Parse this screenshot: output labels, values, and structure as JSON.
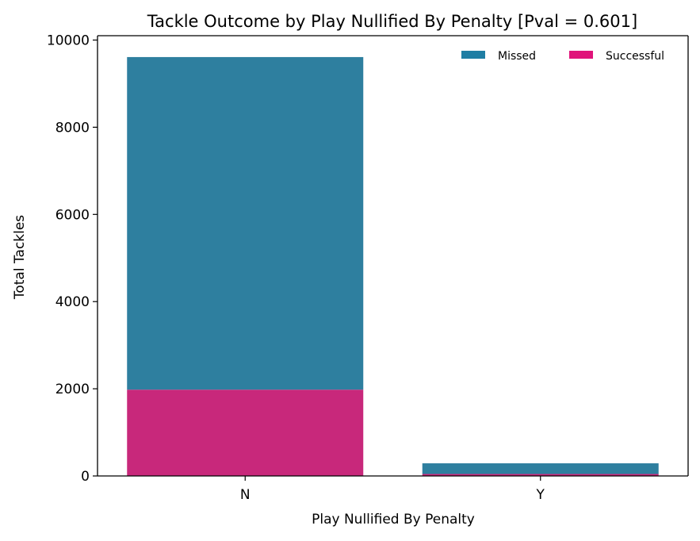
{
  "colors": {
    "missed": "#2e7f9f",
    "successful": "#c8287b",
    "legend_missed": "#1f7ea4",
    "legend_successful": "#e0137a",
    "axis": "#000000"
  },
  "chart_data": {
    "type": "bar",
    "stacked": true,
    "title": "Tackle Outcome by Play Nullified By Penalty [Pval = 0.601]",
    "xlabel": "Play Nullified By Penalty",
    "ylabel": "Total Tackles",
    "categories": [
      "N",
      "Y"
    ],
    "series": [
      {
        "name": "Successful",
        "values": [
          1980,
          45
        ]
      },
      {
        "name": "Missed",
        "values": [
          7630,
          245
        ]
      }
    ],
    "ylim": [
      0,
      10100
    ],
    "yticks": [
      0,
      2000,
      4000,
      6000,
      8000,
      10000
    ],
    "ytick_labels": [
      "0",
      "2000",
      "4000",
      "6000",
      "8000",
      "10000"
    ],
    "legend": {
      "placement": "top-right",
      "entries": [
        "Missed",
        "Successful"
      ]
    },
    "grid": false
  }
}
